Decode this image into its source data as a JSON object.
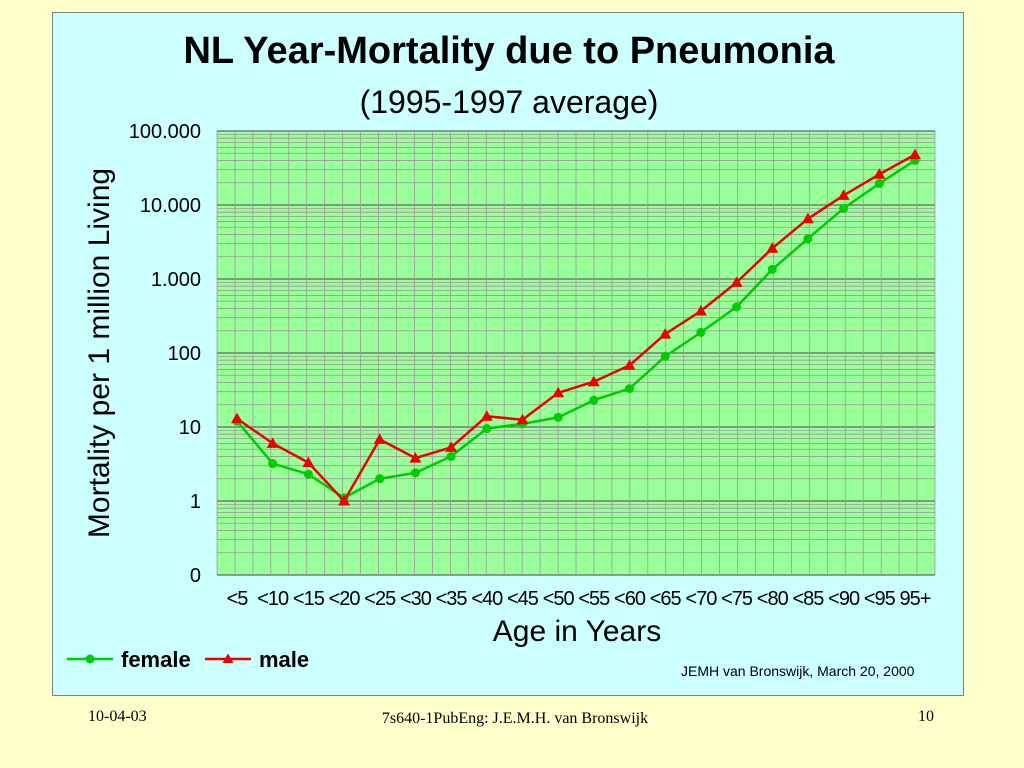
{
  "chart_data": {
    "type": "line",
    "title": "NL Year-Mortality due to Pneumonia",
    "subtitle": "(1995-1997 average)",
    "xlabel": "Age in Years",
    "ylabel": "Mortality per 1 million Living",
    "yscale": "log",
    "ylim": [
      0.1,
      100000
    ],
    "grid": true,
    "legend_position": "bottom-left",
    "categories": [
      "<5",
      "<10",
      "<15",
      "<20",
      "<25",
      "<30",
      "<35",
      "<40",
      "<45",
      "<50",
      "<55",
      "<60",
      "<65",
      "<70",
      "<75",
      "<80",
      "<85",
      "<90",
      "<95",
      "95+"
    ],
    "y_ticks": [
      {
        "value": 0.1,
        "label": "0"
      },
      {
        "value": 1,
        "label": "1"
      },
      {
        "value": 10,
        "label": "10"
      },
      {
        "value": 100,
        "label": "100"
      },
      {
        "value": 1000,
        "label": "1.000"
      },
      {
        "value": 10000,
        "label": "10.000"
      },
      {
        "value": 100000,
        "label": "100.000"
      }
    ],
    "series": [
      {
        "name": "female",
        "color": "#00cc00",
        "marker": "circle",
        "values": [
          12,
          3.2,
          2.3,
          1.1,
          2.0,
          2.4,
          4.0,
          9.5,
          11,
          13.5,
          23,
          33,
          90,
          190,
          420,
          1350,
          3500,
          9000,
          19500,
          40000
        ]
      },
      {
        "name": "male",
        "color": "#ee0000",
        "marker": "triangle",
        "values": [
          13,
          6.0,
          3.3,
          1.0,
          6.8,
          3.8,
          5.3,
          14,
          12.5,
          29,
          41,
          68,
          180,
          370,
          900,
          2600,
          6500,
          13500,
          26000,
          48000
        ]
      }
    ],
    "annotation": "JEMH van Bronswijk, March 20, 2000"
  },
  "colors": {
    "background": "#ffffcc",
    "panel": "#ccffff",
    "plot_area": "#99ff99",
    "grid_minor": "#999999",
    "grid_major": "#666666"
  },
  "footer": {
    "date": "10-04-03",
    "center": "7s640-1PubEng: J.E.M.H. van Bronswijk",
    "page": "10"
  }
}
